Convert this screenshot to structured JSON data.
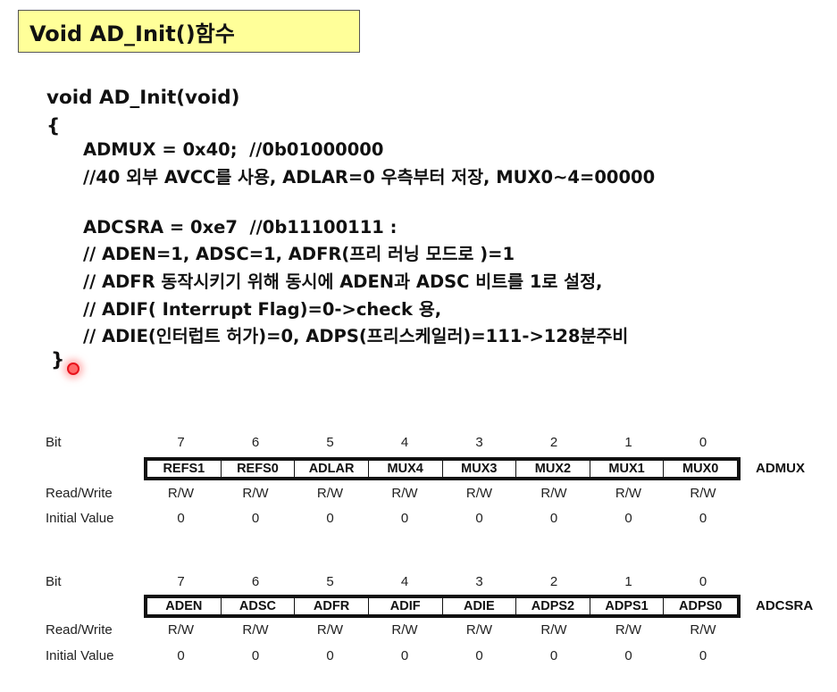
{
  "title": "Void AD_Init()함수",
  "code": {
    "signature": "void AD_Init(void)",
    "open_brace": "{",
    "lines": [
      "ADMUX = 0x40;  //0b01000000",
      "//40 외부 AVCC를 사용, ADLAR=0 우측부터 저장, MUX0~4=00000",
      "ADCSRA = 0xe7  //0b11100111 :",
      "// ADEN=1, ADSC=1, ADFR(프리 러닝 모드로 )=1",
      "// ADFR 동작시키기 위해 동시에 ADEN과 ADSC 비트를 1로 설정,",
      "// ADIF( Interrupt Flag)=0->check 용,",
      "// ADIE(인터럽트 허가)=0, ADPS(프리스케일러)=111->128분주비"
    ],
    "close_brace": "}"
  },
  "registers": [
    {
      "name": "ADMUX",
      "bit_label": "Bit",
      "rw_label": "Read/Write",
      "init_label": "Initial Value",
      "bits": [
        "7",
        "6",
        "5",
        "4",
        "3",
        "2",
        "1",
        "0"
      ],
      "fields": [
        "REFS1",
        "REFS0",
        "ADLAR",
        "MUX4",
        "MUX3",
        "MUX2",
        "MUX1",
        "MUX0"
      ],
      "rw": [
        "R/W",
        "R/W",
        "R/W",
        "R/W",
        "R/W",
        "R/W",
        "R/W",
        "R/W"
      ],
      "initial": [
        "0",
        "0",
        "0",
        "0",
        "0",
        "0",
        "0",
        "0"
      ]
    },
    {
      "name": "ADCSRA",
      "bit_label": "Bit",
      "rw_label": "Read/Write",
      "init_label": "Initial Value",
      "bits": [
        "7",
        "6",
        "5",
        "4",
        "3",
        "2",
        "1",
        "0"
      ],
      "fields": [
        "ADEN",
        "ADSC",
        "ADFR",
        "ADIF",
        "ADIE",
        "ADPS2",
        "ADPS1",
        "ADPS0"
      ],
      "rw": [
        "R/W",
        "R/W",
        "R/W",
        "R/W",
        "R/W",
        "R/W",
        "R/W",
        "R/W"
      ],
      "initial": [
        "0",
        "0",
        "0",
        "0",
        "0",
        "0",
        "0",
        "0"
      ]
    }
  ],
  "colors": {
    "title_background": "#ffff99",
    "pointer_dot": "#e8121b"
  }
}
